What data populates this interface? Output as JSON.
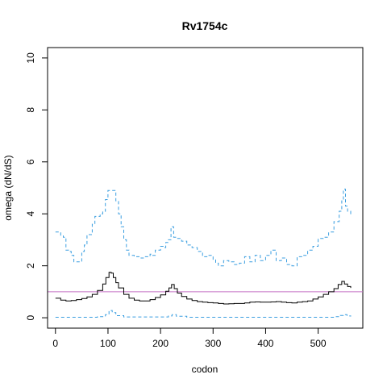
{
  "chart_data": {
    "type": "line",
    "title": "Rv1754c",
    "xlabel": "codon",
    "ylabel": "omega (dN/dS)",
    "xlim": [
      -15,
      585
    ],
    "ylim": [
      -0.4,
      10.4
    ],
    "xticks": [
      0,
      100,
      200,
      300,
      400,
      500
    ],
    "yticks": [
      0,
      2,
      4,
      6,
      8,
      10
    ],
    "reference_line": {
      "y": 1,
      "color": "#c46fc4"
    },
    "grid": false,
    "series": [
      {
        "style": "dashed",
        "color": "#3a9ee0",
        "points": [
          [
            0,
            3.3
          ],
          [
            10,
            3.15
          ],
          [
            15,
            3.1
          ],
          [
            20,
            2.6
          ],
          [
            25,
            2.55
          ],
          [
            30,
            2.4
          ],
          [
            35,
            2.15
          ],
          [
            45,
            2.15
          ],
          [
            50,
            2.55
          ],
          [
            55,
            2.8
          ],
          [
            60,
            3.2
          ],
          [
            70,
            3.6
          ],
          [
            75,
            3.9
          ],
          [
            85,
            4.0
          ],
          [
            90,
            4.1
          ],
          [
            95,
            4.55
          ],
          [
            100,
            4.9
          ],
          [
            108,
            4.9
          ],
          [
            115,
            4.5
          ],
          [
            120,
            4.0
          ],
          [
            125,
            3.5
          ],
          [
            130,
            3.0
          ],
          [
            135,
            2.6
          ],
          [
            140,
            2.4
          ],
          [
            150,
            2.35
          ],
          [
            160,
            2.3
          ],
          [
            170,
            2.35
          ],
          [
            180,
            2.45
          ],
          [
            185,
            2.4
          ],
          [
            190,
            2.6
          ],
          [
            200,
            2.75
          ],
          [
            205,
            2.7
          ],
          [
            210,
            2.9
          ],
          [
            215,
            3.0
          ],
          [
            220,
            3.5
          ],
          [
            225,
            3.1
          ],
          [
            230,
            3.05
          ],
          [
            240,
            2.95
          ],
          [
            250,
            2.8
          ],
          [
            260,
            2.7
          ],
          [
            270,
            2.55
          ],
          [
            280,
            2.35
          ],
          [
            290,
            2.4
          ],
          [
            300,
            2.25
          ],
          [
            305,
            2.1
          ],
          [
            310,
            2.0
          ],
          [
            320,
            2.2
          ],
          [
            330,
            2.15
          ],
          [
            340,
            2.05
          ],
          [
            350,
            2.1
          ],
          [
            360,
            2.35
          ],
          [
            370,
            2.15
          ],
          [
            380,
            2.4
          ],
          [
            390,
            2.2
          ],
          [
            400,
            2.4
          ],
          [
            410,
            2.6
          ],
          [
            420,
            2.2
          ],
          [
            430,
            2.3
          ],
          [
            440,
            2.05
          ],
          [
            450,
            2.0
          ],
          [
            460,
            2.35
          ],
          [
            470,
            2.4
          ],
          [
            480,
            2.6
          ],
          [
            490,
            2.75
          ],
          [
            500,
            3.05
          ],
          [
            510,
            3.1
          ],
          [
            520,
            3.3
          ],
          [
            530,
            3.7
          ],
          [
            540,
            4.1
          ],
          [
            545,
            4.5
          ],
          [
            548,
            4.95
          ],
          [
            552,
            4.3
          ],
          [
            556,
            4.1
          ],
          [
            562,
            3.95
          ]
        ]
      },
      {
        "style": "solid",
        "color": "#000000",
        "points": [
          [
            0,
            0.75
          ],
          [
            10,
            0.68
          ],
          [
            20,
            0.65
          ],
          [
            30,
            0.66
          ],
          [
            40,
            0.7
          ],
          [
            50,
            0.74
          ],
          [
            60,
            0.8
          ],
          [
            70,
            0.9
          ],
          [
            80,
            1.05
          ],
          [
            90,
            1.3
          ],
          [
            96,
            1.55
          ],
          [
            102,
            1.75
          ],
          [
            106,
            1.72
          ],
          [
            110,
            1.55
          ],
          [
            115,
            1.35
          ],
          [
            120,
            1.15
          ],
          [
            130,
            0.9
          ],
          [
            140,
            0.75
          ],
          [
            150,
            0.68
          ],
          [
            160,
            0.65
          ],
          [
            170,
            0.65
          ],
          [
            180,
            0.7
          ],
          [
            190,
            0.78
          ],
          [
            200,
            0.88
          ],
          [
            210,
            1.02
          ],
          [
            216,
            1.15
          ],
          [
            221,
            1.28
          ],
          [
            226,
            1.12
          ],
          [
            232,
            0.95
          ],
          [
            240,
            0.82
          ],
          [
            250,
            0.72
          ],
          [
            260,
            0.66
          ],
          [
            270,
            0.62
          ],
          [
            280,
            0.6
          ],
          [
            290,
            0.58
          ],
          [
            300,
            0.57
          ],
          [
            310,
            0.55
          ],
          [
            320,
            0.53
          ],
          [
            330,
            0.54
          ],
          [
            340,
            0.55
          ],
          [
            350,
            0.55
          ],
          [
            360,
            0.57
          ],
          [
            370,
            0.6
          ],
          [
            380,
            0.61
          ],
          [
            390,
            0.6
          ],
          [
            400,
            0.6
          ],
          [
            410,
            0.61
          ],
          [
            420,
            0.62
          ],
          [
            430,
            0.6
          ],
          [
            440,
            0.58
          ],
          [
            450,
            0.57
          ],
          [
            460,
            0.6
          ],
          [
            470,
            0.62
          ],
          [
            480,
            0.65
          ],
          [
            490,
            0.72
          ],
          [
            500,
            0.8
          ],
          [
            510,
            0.9
          ],
          [
            520,
            1.0
          ],
          [
            530,
            1.12
          ],
          [
            538,
            1.28
          ],
          [
            545,
            1.4
          ],
          [
            550,
            1.3
          ],
          [
            556,
            1.2
          ],
          [
            562,
            1.15
          ]
        ]
      },
      {
        "style": "dashed",
        "color": "#3a9ee0",
        "points": [
          [
            0,
            0.02
          ],
          [
            50,
            0.02
          ],
          [
            80,
            0.04
          ],
          [
            95,
            0.12
          ],
          [
            102,
            0.28
          ],
          [
            108,
            0.2
          ],
          [
            115,
            0.08
          ],
          [
            130,
            0.03
          ],
          [
            200,
            0.03
          ],
          [
            215,
            0.07
          ],
          [
            222,
            0.12
          ],
          [
            230,
            0.06
          ],
          [
            250,
            0.02
          ],
          [
            500,
            0.02
          ],
          [
            530,
            0.04
          ],
          [
            542,
            0.09
          ],
          [
            548,
            0.12
          ],
          [
            555,
            0.07
          ],
          [
            562,
            0.05
          ]
        ]
      }
    ]
  }
}
